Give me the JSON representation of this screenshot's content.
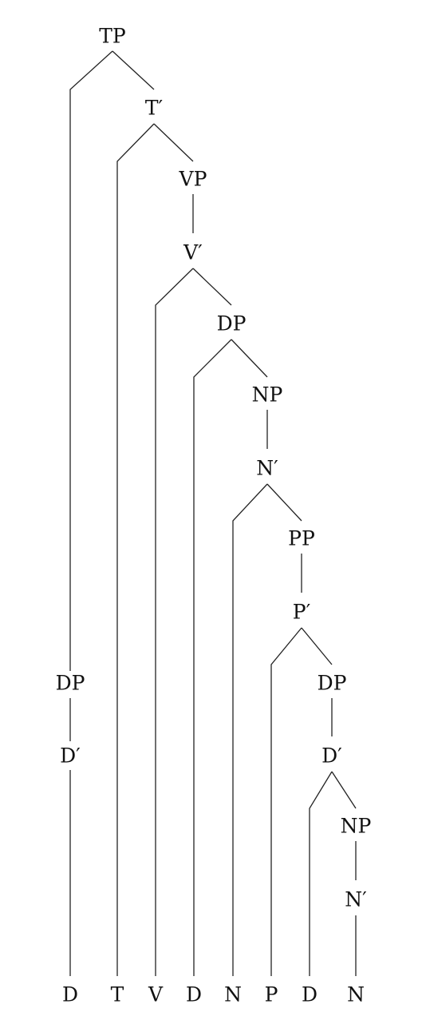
{
  "tree": {
    "nodes": {
      "tp": "TP",
      "t_bar": "T′",
      "vp": "VP",
      "v_bar": "V′",
      "dp_object": "DP",
      "np_object": "NP",
      "n_bar_object": "N′",
      "pp": "PP",
      "p_bar": "P′",
      "dp_pp": "DP",
      "d_bar_pp": "D′",
      "np_pp": "NP",
      "n_bar_pp": "N′",
      "dp_subject": "DP",
      "d_bar_subject": "D′"
    },
    "leaves": {
      "d_subject": "D",
      "t_head": "T",
      "v_head": "V",
      "d_object": "D",
      "n_object": "N",
      "p_head": "P",
      "d_pp": "D",
      "n_pp": "N"
    }
  }
}
